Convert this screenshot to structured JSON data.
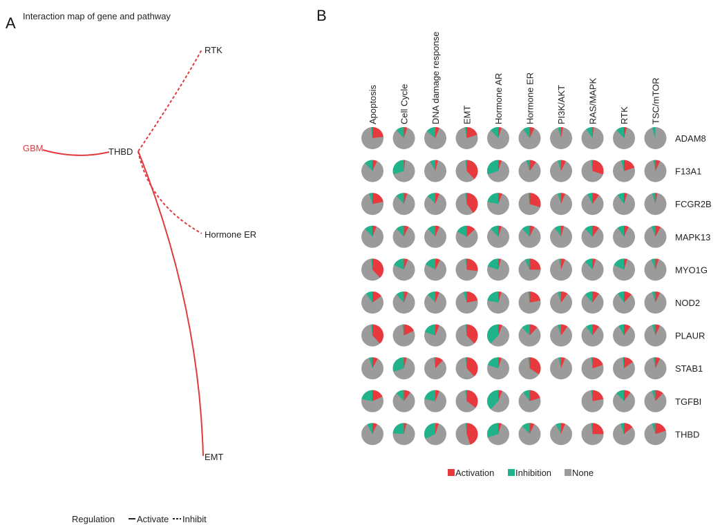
{
  "panel_a": {
    "letter": "A",
    "title": "Interaction map of gene and pathway",
    "nodes": {
      "gbm": "GBM",
      "thbd": "THBD",
      "rtk": "RTK",
      "hormone_er": "Hormone ER",
      "emt": "EMT"
    },
    "edges": [
      {
        "from": "GBM",
        "to": "THBD",
        "regulation": "Activate"
      },
      {
        "from": "THBD",
        "to": "RTK",
        "regulation": "Inhibit"
      },
      {
        "from": "THBD",
        "to": "Hormone ER",
        "regulation": "Inhibit"
      },
      {
        "from": "THBD",
        "to": "EMT",
        "regulation": "Activate"
      }
    ],
    "legend": {
      "title": "Regulation",
      "activate": "Activate",
      "inhibit": "Inhibit"
    },
    "colors": {
      "edge": "#e0393e",
      "gbm_text": "#e0393e"
    }
  },
  "panel_b": {
    "letter": "B",
    "legend": {
      "activation": "Activation",
      "inhibition": "Inhibition",
      "none": "None"
    },
    "colors": {
      "activation": "#e8393f",
      "inhibition": "#20b28a",
      "none": "#9b9b9b"
    }
  },
  "chart_data": {
    "type": "pie",
    "description_of_cells": "each cell is [activation fraction, inhibition fraction]; remainder is None; null = no pie shown",
    "columns": [
      "Apoptosis",
      "Cell Cycle",
      "DNA damage response",
      "EMT",
      "Hormone AR",
      "Hormone ER",
      "PI3K/AKT",
      "RAS/MAPK",
      "RTK",
      "TSC/mTOR"
    ],
    "rows": [
      "ADAM8",
      "F13A1",
      "FCGR2B",
      "MAPK13",
      "MYO1G",
      "NOD2",
      "PLAUR",
      "STAB1",
      "TGFBI",
      "THBD"
    ],
    "series": [
      "Activation",
      "Inhibition",
      "None"
    ],
    "values": [
      [
        [
          0.23,
          0.02
        ],
        [
          0.05,
          0.12
        ],
        [
          0.06,
          0.14
        ],
        [
          0.2,
          0.03
        ],
        [
          0.05,
          0.12
        ],
        [
          0.07,
          0.1
        ],
        [
          0.03,
          0.05
        ],
        [
          0.02,
          0.1
        ],
        [
          0.04,
          0.12
        ],
        [
          0.0,
          0.05
        ]
      ],
      [
        [
          0.07,
          0.12
        ],
        [
          0.02,
          0.3
        ],
        [
          0.04,
          0.08
        ],
        [
          0.38,
          0.02
        ],
        [
          0.05,
          0.3
        ],
        [
          0.1,
          0.05
        ],
        [
          0.07,
          0.05
        ],
        [
          0.3,
          0.02
        ],
        [
          0.2,
          0.04
        ],
        [
          0.07,
          0.03
        ]
      ],
      [
        [
          0.22,
          0.05
        ],
        [
          0.05,
          0.12
        ],
        [
          0.06,
          0.12
        ],
        [
          0.4,
          0.02
        ],
        [
          0.06,
          0.22
        ],
        [
          0.3,
          0.02
        ],
        [
          0.06,
          0.05
        ],
        [
          0.1,
          0.08
        ],
        [
          0.05,
          0.1
        ],
        [
          0.03,
          0.05
        ]
      ],
      [
        [
          0.06,
          0.12
        ],
        [
          0.07,
          0.12
        ],
        [
          0.06,
          0.12
        ],
        [
          0.13,
          0.17
        ],
        [
          0.05,
          0.12
        ],
        [
          0.07,
          0.12
        ],
        [
          0.04,
          0.1
        ],
        [
          0.1,
          0.12
        ],
        [
          0.07,
          0.1
        ],
        [
          0.08,
          0.06
        ]
      ],
      [
        [
          0.38,
          0.02
        ],
        [
          0.06,
          0.18
        ],
        [
          0.07,
          0.17
        ],
        [
          0.27,
          0.02
        ],
        [
          0.04,
          0.2
        ],
        [
          0.25,
          0.07
        ],
        [
          0.06,
          0.03
        ],
        [
          0.05,
          0.12
        ],
        [
          0.05,
          0.18
        ],
        [
          0.05,
          0.06
        ]
      ],
      [
        [
          0.15,
          0.1
        ],
        [
          0.06,
          0.12
        ],
        [
          0.06,
          0.12
        ],
        [
          0.22,
          0.05
        ],
        [
          0.05,
          0.22
        ],
        [
          0.22,
          0.02
        ],
        [
          0.1,
          0.05
        ],
        [
          0.1,
          0.12
        ],
        [
          0.12,
          0.1
        ],
        [
          0.07,
          0.05
        ]
      ],
      [
        [
          0.38,
          0.02
        ],
        [
          0.18,
          0.02
        ],
        [
          0.06,
          0.2
        ],
        [
          0.38,
          0.02
        ],
        [
          0.06,
          0.38
        ],
        [
          0.12,
          0.12
        ],
        [
          0.1,
          0.05
        ],
        [
          0.1,
          0.1
        ],
        [
          0.1,
          0.08
        ],
        [
          0.07,
          0.05
        ]
      ],
      [
        [
          0.08,
          0.05
        ],
        [
          0.04,
          0.3
        ],
        [
          0.12,
          0.02
        ],
        [
          0.38,
          0.02
        ],
        [
          0.05,
          0.2
        ],
        [
          0.34,
          0.02
        ],
        [
          0.06,
          0.04
        ],
        [
          0.2,
          0.02
        ],
        [
          0.15,
          0.02
        ],
        [
          0.07,
          0.03
        ]
      ],
      [
        [
          0.18,
          0.22
        ],
        [
          0.1,
          0.12
        ],
        [
          0.06,
          0.22
        ],
        [
          0.35,
          0.02
        ],
        [
          0.06,
          0.38
        ],
        [
          0.2,
          0.1
        ],
        null,
        [
          0.22,
          0.02
        ],
        [
          0.1,
          0.12
        ],
        [
          0.12,
          0.05
        ]
      ],
      [
        [
          0.07,
          0.08
        ],
        [
          0.04,
          0.24
        ],
        [
          0.05,
          0.32
        ],
        [
          0.45,
          0.02
        ],
        [
          0.05,
          0.3
        ],
        [
          0.07,
          0.12
        ],
        [
          0.06,
          0.08
        ],
        [
          0.25,
          0.02
        ],
        [
          0.14,
          0.05
        ],
        [
          0.2,
          0.05
        ]
      ]
    ]
  }
}
